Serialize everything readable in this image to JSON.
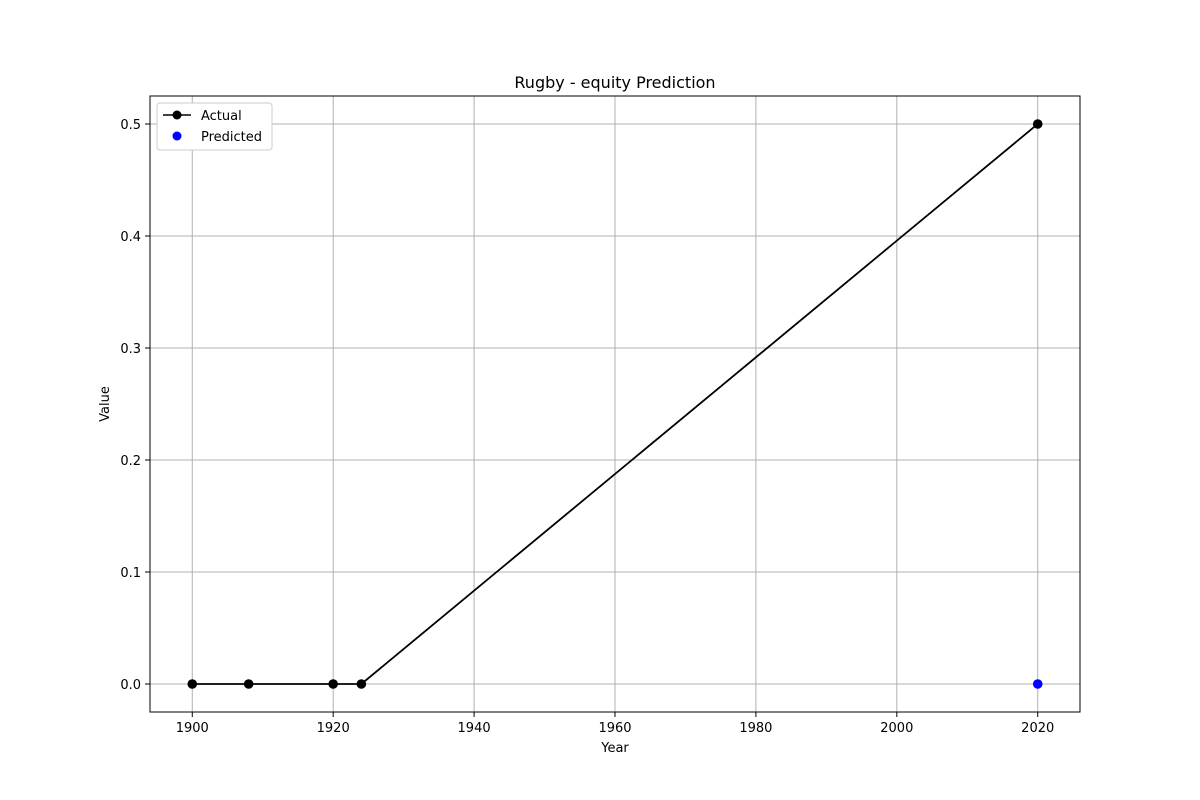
{
  "chart_data": {
    "type": "line",
    "title": "Rugby - equity Prediction",
    "xlabel": "Year",
    "ylabel": "Value",
    "xlim": [
      1894,
      2026
    ],
    "ylim": [
      -0.025,
      0.525
    ],
    "xticks": [
      1900,
      1920,
      1940,
      1960,
      1980,
      2000,
      2020
    ],
    "yticks": [
      0.0,
      0.1,
      0.2,
      0.3,
      0.4,
      0.5
    ],
    "xtick_labels": [
      "1900",
      "1920",
      "1940",
      "1960",
      "1980",
      "2000",
      "2020"
    ],
    "ytick_labels": [
      "0.0",
      "0.1",
      "0.2",
      "0.3",
      "0.4",
      "0.5"
    ],
    "grid": true,
    "legend_position": "top-left",
    "series": [
      {
        "name": "Actual",
        "kind": "line-marker",
        "color": "#000000",
        "x": [
          1900,
          1908,
          1920,
          1924,
          2020
        ],
        "y": [
          0.0,
          0.0,
          0.0,
          0.0,
          0.5
        ]
      },
      {
        "name": "Predicted",
        "kind": "scatter",
        "color": "#0000ff",
        "x": [
          2020
        ],
        "y": [
          0.0
        ]
      }
    ]
  }
}
